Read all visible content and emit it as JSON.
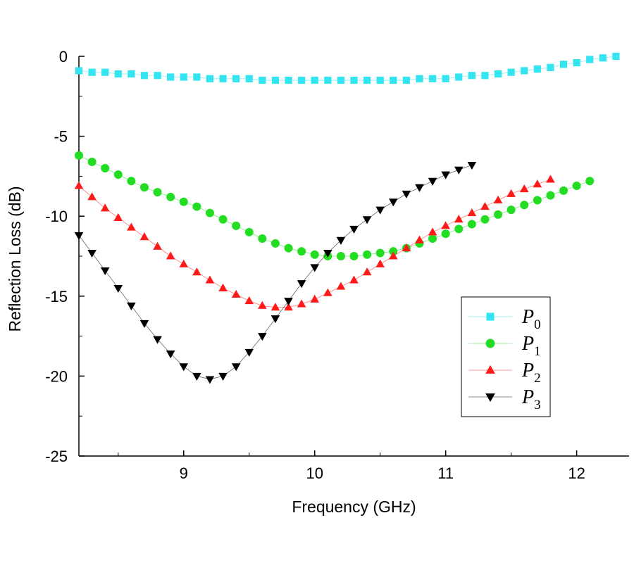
{
  "chart_data": {
    "type": "scatter",
    "title": "",
    "xlabel": "Frequency (GHz)",
    "ylabel": "Reflection Loss (dB)",
    "xlim": [
      8.2,
      12.4
    ],
    "ylim": [
      -25,
      0
    ],
    "xticks": [
      9,
      10,
      11,
      12
    ],
    "xtick_labels": [
      "9",
      "10",
      "11",
      "12"
    ],
    "yticks": [
      0,
      -5,
      -10,
      -15,
      -20,
      -25
    ],
    "ytick_labels": [
      "0",
      "-5",
      "-10",
      "-15",
      "-20",
      "-25"
    ],
    "grid": false,
    "legend_position": "lower-right",
    "x": [
      8.2,
      8.3,
      8.4,
      8.5,
      8.6,
      8.7,
      8.8,
      8.9,
      9.0,
      9.1,
      9.2,
      9.3,
      9.4,
      9.5,
      9.6,
      9.7,
      9.8,
      9.9,
      10.0,
      10.1,
      10.2,
      10.3,
      10.4,
      10.5,
      10.6,
      10.7,
      10.8,
      10.9,
      11.0,
      11.1,
      11.2,
      11.3,
      11.4,
      11.5,
      11.6,
      11.7,
      11.8,
      11.9,
      12.0,
      12.1,
      12.2,
      12.3,
      12.4
    ],
    "series": [
      {
        "name": "P",
        "subscript": "0",
        "marker": "square",
        "color": "#33e5f0",
        "values": [
          -0.9,
          -1.0,
          -1.0,
          -1.1,
          -1.1,
          -1.2,
          -1.2,
          -1.3,
          -1.3,
          -1.3,
          -1.4,
          -1.4,
          -1.4,
          -1.4,
          -1.5,
          -1.5,
          -1.5,
          -1.5,
          -1.5,
          -1.5,
          -1.5,
          -1.5,
          -1.5,
          -1.5,
          -1.5,
          -1.5,
          -1.4,
          -1.4,
          -1.4,
          -1.3,
          -1.2,
          -1.2,
          -1.1,
          -1.0,
          -0.9,
          -0.8,
          -0.7,
          -0.5,
          -0.4,
          -0.2,
          -0.1,
          0.0,
          null
        ]
      },
      {
        "name": "P",
        "subscript": "1",
        "marker": "circle",
        "color": "#22dd22",
        "values": [
          -6.2,
          -6.6,
          -7.0,
          -7.4,
          -7.8,
          -8.2,
          -8.5,
          -8.8,
          -9.1,
          -9.4,
          -9.8,
          -10.2,
          -10.6,
          -11.0,
          -11.4,
          -11.7,
          -12.0,
          -12.2,
          -12.4,
          -12.5,
          -12.5,
          -12.5,
          -12.4,
          -12.3,
          -12.2,
          -12.0,
          -11.7,
          -11.4,
          -11.1,
          -10.8,
          -10.5,
          -10.2,
          -9.9,
          -9.6,
          -9.3,
          -9.0,
          -8.7,
          -8.4,
          -8.1,
          -7.8,
          null,
          null,
          null
        ]
      },
      {
        "name": "P",
        "subscript": "2",
        "marker": "triangle-up",
        "color": "#ff1a1a",
        "values": [
          -8.1,
          -8.8,
          -9.5,
          -10.1,
          -10.7,
          -11.3,
          -11.9,
          -12.5,
          -13.0,
          -13.5,
          -14.0,
          -14.5,
          -14.9,
          -15.3,
          -15.6,
          -15.7,
          -15.7,
          -15.5,
          -15.2,
          -14.8,
          -14.4,
          -14.0,
          -13.5,
          -13.0,
          -12.5,
          -12.0,
          -11.5,
          -11.0,
          -10.6,
          -10.2,
          -9.8,
          -9.4,
          -9.0,
          -8.6,
          -8.3,
          -8.0,
          -7.7,
          null,
          null,
          null,
          null,
          null,
          null
        ]
      },
      {
        "name": "P",
        "subscript": "3",
        "marker": "triangle-down",
        "color": "#000000",
        "values": [
          -11.2,
          -12.3,
          -13.4,
          -14.5,
          -15.6,
          -16.7,
          -17.7,
          -18.6,
          -19.4,
          -20.0,
          -20.2,
          -20.0,
          -19.4,
          -18.5,
          -17.5,
          -16.4,
          -15.3,
          -14.2,
          -13.2,
          -12.3,
          -11.5,
          -10.8,
          -10.2,
          -9.6,
          -9.1,
          -8.6,
          -8.2,
          -7.8,
          -7.4,
          -7.1,
          -6.8,
          null,
          null,
          null,
          null,
          null,
          null,
          null,
          null,
          null,
          null,
          null,
          null
        ]
      }
    ]
  }
}
